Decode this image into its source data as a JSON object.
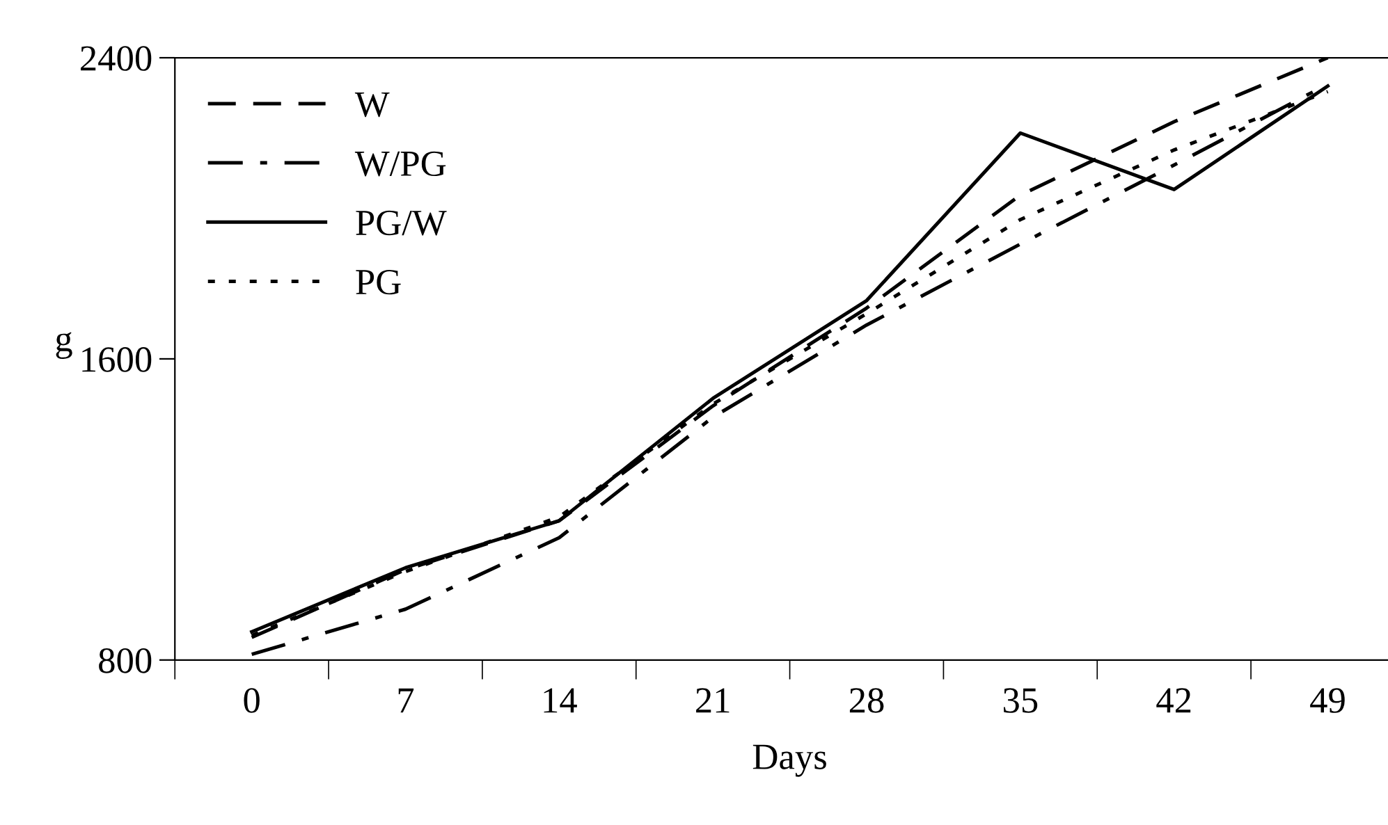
{
  "chart_data": {
    "type": "line",
    "xlabel": "Days",
    "ylabel": "g",
    "categories": [
      "0",
      "7",
      "14",
      "21",
      "28",
      "35",
      "42",
      "49"
    ],
    "ylim": [
      800,
      2400
    ],
    "yticks": [
      800,
      1600,
      2400
    ],
    "grid": false,
    "legend": "top left",
    "series": [
      {
        "name": "W",
        "color": "#000000",
        "line_style": "dashed",
        "values": [
          860,
          1040,
          1170,
          1475,
          1735,
          2035,
          2230,
          2400
        ]
      },
      {
        "name": "W/PG",
        "color": "#000000",
        "line_style": "dashdot",
        "values": [
          815,
          935,
          1125,
          1445,
          1690,
          1905,
          2115,
          2330
        ]
      },
      {
        "name": "PG/W",
        "color": "#000000",
        "line_style": "solid",
        "values": [
          875,
          1045,
          1170,
          1495,
          1755,
          2200,
          2050,
          2325
        ]
      },
      {
        "name": "PG",
        "color": "#000000",
        "line_style": "dotted",
        "values": [
          865,
          1035,
          1180,
          1480,
          1720,
          1970,
          2155,
          2310
        ]
      }
    ]
  }
}
